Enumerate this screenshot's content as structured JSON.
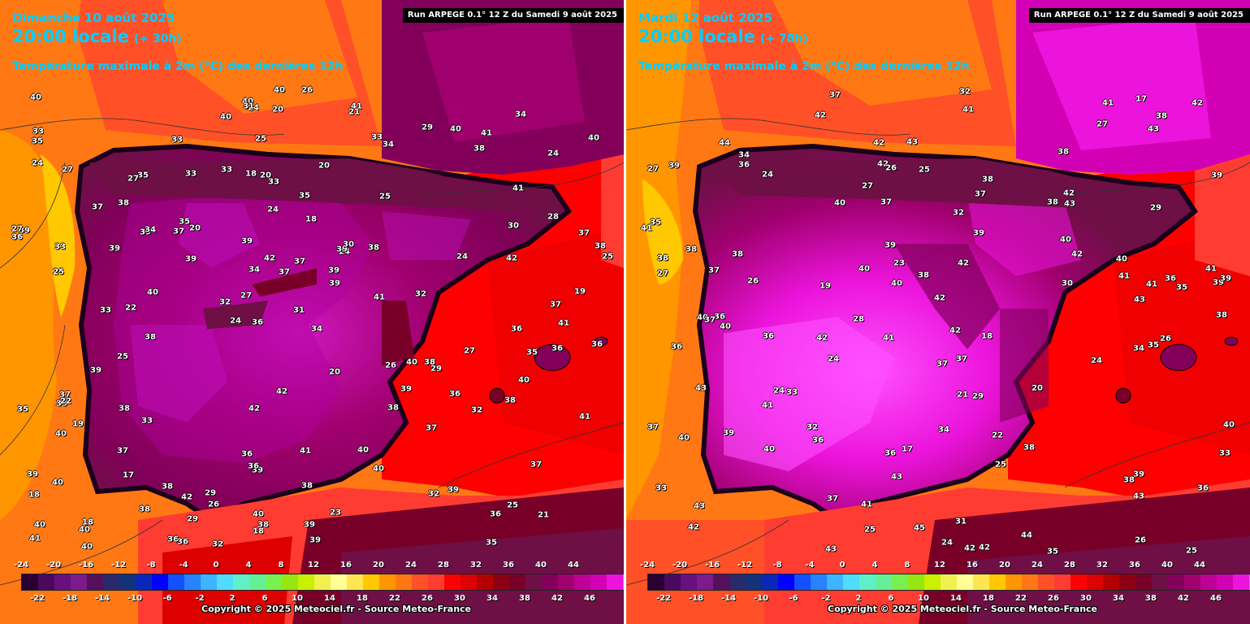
{
  "legend_colors": [
    "#2a0033",
    "#4a0a5c",
    "#6a0f80",
    "#7d1a8c",
    "#55105a",
    "#2a2a6a",
    "#14327a",
    "#0a28b8",
    "#0000ff",
    "#1450ff",
    "#2882ff",
    "#3cb4ff",
    "#50dcff",
    "#5ff0c8",
    "#64f096",
    "#78f050",
    "#96e614",
    "#c8f000",
    "#f0f050",
    "#ffff96",
    "#ffe650",
    "#ffc800",
    "#ff9600",
    "#ff7814",
    "#ff5028",
    "#ff3c32",
    "#ff0000",
    "#dc0000",
    "#b40000",
    "#8c0014",
    "#780028",
    "#6e0f46",
    "#82005a",
    "#a0006e",
    "#be0096",
    "#d200b4",
    "#ec14dc",
    "#ff50ff",
    "#ff96ff"
  ],
  "legend_ticks_top": [
    "-24",
    "-20",
    "-16",
    "-12",
    "-8",
    "-4",
    "0",
    "4",
    "8",
    "12",
    "16",
    "20",
    "24",
    "28",
    "32",
    "36",
    "40",
    "44"
  ],
  "legend_ticks_bottom": [
    "-22",
    "-18",
    "-14",
    "-10",
    "-6",
    "-2",
    "2",
    "6",
    "10",
    "14",
    "18",
    "22",
    "26",
    "30",
    "34",
    "38",
    "42",
    "46"
  ],
  "panels": [
    {
      "date": "Dimanche 10 août 2025",
      "hour": "20:00 locale",
      "lead": "(+ 30h)",
      "parameter": "Température maximale à 2m (°C) des dernières 12h",
      "run": "Run ARPEGE 0.1° 12 Z du Samedi 9 août 2025",
      "copyright": "Copyright © 2025 Meteociel.fr - Source Meteo-France",
      "values": [
        "21",
        "25",
        "24",
        "24",
        "25",
        "18",
        "18",
        "18",
        "19",
        "20",
        "18",
        "17",
        "20",
        "24",
        "29",
        "27",
        "24",
        "25",
        "26",
        "28",
        "27",
        "36",
        "34",
        "35",
        "29",
        "33",
        "36",
        "37",
        "38",
        "39",
        "37",
        "39",
        "38",
        "38",
        "37",
        "39",
        "40",
        "39",
        "39",
        "40",
        "41",
        "40",
        "39",
        "40",
        "37",
        "40",
        "41",
        "41",
        "41",
        "40",
        "40",
        "39",
        "38",
        "40",
        "40",
        "41",
        "40",
        "42",
        "41",
        "42",
        "42",
        "40",
        "39",
        "39",
        "40",
        "37",
        "36",
        "39",
        "38",
        "37",
        "40",
        "41",
        "40",
        "40",
        "42",
        "42",
        "39",
        "39",
        "40",
        "40",
        "41",
        "38",
        "37",
        "37",
        "38",
        "36",
        "38",
        "33",
        "34",
        "33",
        "36",
        "37",
        "38",
        "39",
        "38",
        "38",
        "39",
        "38",
        "39",
        "36",
        "35",
        "33",
        "32",
        "36",
        "35",
        "36",
        "34",
        "33",
        "32",
        "33",
        "35",
        "35",
        "33",
        "32",
        "25",
        "25",
        "26",
        "24",
        "24",
        "22",
        "23",
        "34",
        "33",
        "35",
        "36",
        "38",
        "37",
        "36",
        "35",
        "34",
        "33",
        "32",
        "31",
        "30",
        "33",
        "29",
        "32",
        "36",
        "31",
        "30",
        "27",
        "27",
        "29",
        "27",
        "26",
        "25",
        "24",
        "22",
        "20",
        "20",
        "20",
        "19",
        "18",
        "21"
      ]
    },
    {
      "date": "Mardi 12 août 2025",
      "hour": "20:00 locale",
      "lead": "(+ 78h)",
      "parameter": "Température maximale à 2m (°C) des dernières 12h",
      "run": "Run ARPEGE 0.1° 12 Z du Samedi 9 août 2025",
      "copyright": "Copyright © 2025 Meteociel.fr - Source Meteo-France",
      "values": [
        "37",
        "38",
        "39",
        "41",
        "37",
        "36",
        "39",
        "38",
        "36",
        "37",
        "42",
        "42",
        "42",
        "42",
        "42",
        "42",
        "43",
        "41",
        "42",
        "41",
        "37",
        "40",
        "39",
        "36",
        "37",
        "38",
        "40",
        "41",
        "39",
        "40",
        "38",
        "38",
        "39",
        "40",
        "38",
        "40",
        "40",
        "41",
        "42",
        "43",
        "43",
        "43",
        "44",
        "44",
        "45",
        "43",
        "43",
        "42",
        "41",
        "42",
        "42",
        "43",
        "42",
        "43",
        "41",
        "40",
        "39",
        "38",
        "38",
        "37",
        "36",
        "35",
        "34",
        "36",
        "37",
        "38",
        "41",
        "40",
        "40",
        "39",
        "43",
        "42",
        "41",
        "40",
        "39",
        "38",
        "37",
        "36",
        "35",
        "33",
        "32",
        "31",
        "26",
        "27",
        "27",
        "26",
        "25",
        "24",
        "24",
        "25",
        "27",
        "26",
        "25",
        "24",
        "23",
        "22",
        "21",
        "19",
        "18",
        "17",
        "17",
        "20",
        "29",
        "28",
        "26",
        "24",
        "24",
        "25",
        "27",
        "30",
        "29",
        "32",
        "36",
        "35",
        "34",
        "33",
        "32",
        "35",
        "34",
        "33",
        "36",
        "38",
        "37"
      ]
    }
  ]
}
